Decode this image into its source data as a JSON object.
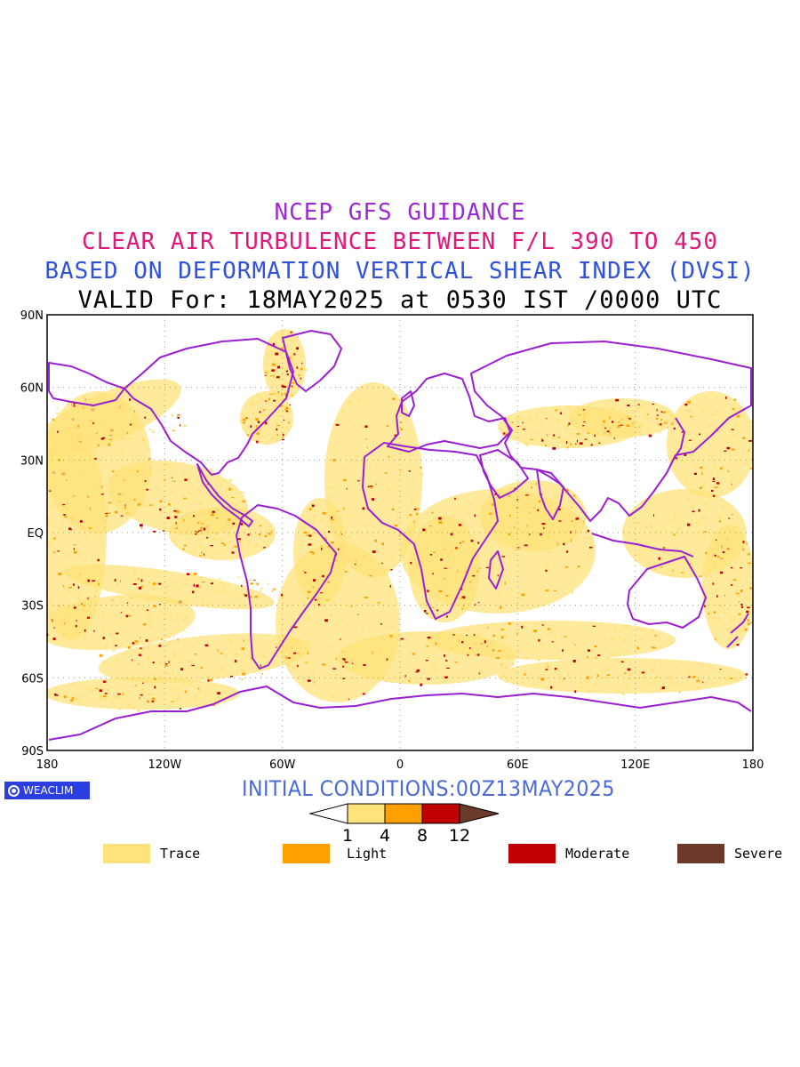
{
  "titles": {
    "line1": "NCEP GFS GUIDANCE",
    "line2": "CLEAR AIR TURBULENCE BETWEEN F/L 390 TO 450",
    "line3": "BASED ON DEFORMATION VERTICAL SHEAR INDEX (DVSI)",
    "line4": "VALID For: 18MAY2025 at 0530 IST /0000 UTC",
    "colors": {
      "line1": "#9c2bd6",
      "line2": "#e0197a",
      "line3": "#2f52d9",
      "line4": "#000000"
    }
  },
  "axes": {
    "lat_labels": [
      "90N",
      "60N",
      "30N",
      "EQ",
      "30S",
      "60S",
      "90S"
    ],
    "lon_labels": [
      "180",
      "120W",
      "60W",
      "0",
      "60E",
      "120E",
      "180"
    ]
  },
  "brand": {
    "label": "WEACLIM"
  },
  "initial_conditions": "INITIAL CONDITIONS:00Z13MAY2025",
  "colorbar": {
    "ticks": [
      "1",
      "4",
      "8",
      "12"
    ],
    "colors": [
      "#ffffff",
      "#ffe27a",
      "#ffa000",
      "#c00000",
      "#6b3a2a"
    ]
  },
  "legend": [
    {
      "label": "Trace",
      "color": "#ffe27a"
    },
    {
      "label": "Light",
      "color": "#ffa000"
    },
    {
      "label": "Moderate",
      "color": "#c00000"
    },
    {
      "label": "Severe",
      "color": "#6b3a2a"
    }
  ],
  "map_colors": {
    "coast": "#9b1fd1",
    "grid": "#9a9a9a",
    "trace": "#ffe27a",
    "light": "#ffa000",
    "moderate": "#c00000"
  }
}
